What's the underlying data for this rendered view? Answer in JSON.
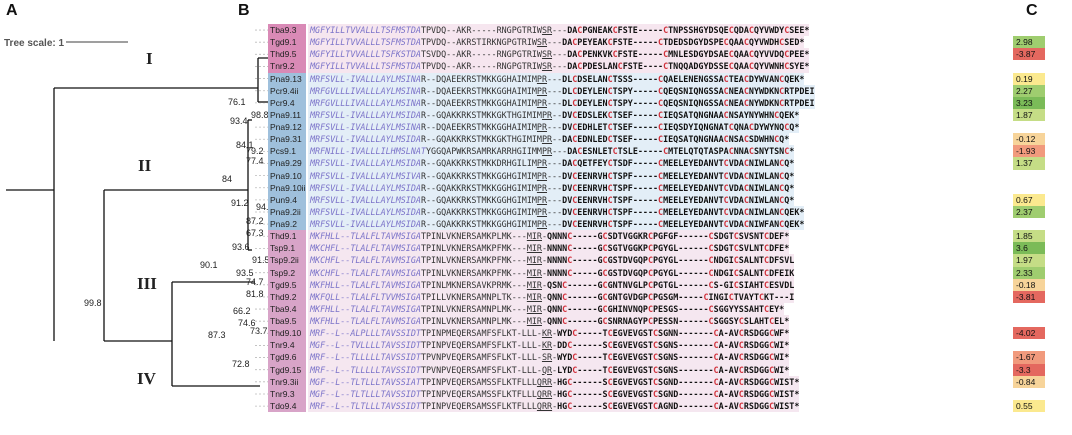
{
  "panels": {
    "a": "A",
    "b": "B",
    "c": "C"
  },
  "tree_scale_label": "Tree scale: 1",
  "clades": [
    "I",
    "II",
    "III",
    "IV"
  ],
  "bootstrap": [
    {
      "id": "b1",
      "v": "93.4"
    },
    {
      "id": "b2",
      "v": "76.1"
    },
    {
      "id": "b3",
      "v": "98.8"
    },
    {
      "id": "b4",
      "v": "84.1"
    },
    {
      "id": "b5",
      "v": "79.2"
    },
    {
      "id": "b6",
      "v": "77.4"
    },
    {
      "id": "b7",
      "v": "84"
    },
    {
      "id": "b8",
      "v": "91.2"
    },
    {
      "id": "b9",
      "v": "94.4"
    },
    {
      "id": "b10",
      "v": "87.2"
    },
    {
      "id": "b11",
      "v": "67.3"
    },
    {
      "id": "b12",
      "v": "93.6"
    },
    {
      "id": "b13",
      "v": "91.5"
    },
    {
      "id": "b14",
      "v": "90.1"
    },
    {
      "id": "b15",
      "v": "93.5"
    },
    {
      "id": "b16",
      "v": "74.7"
    },
    {
      "id": "b17",
      "v": "81.8"
    },
    {
      "id": "b18",
      "v": "99.8"
    },
    {
      "id": "b19",
      "v": "66.2"
    },
    {
      "id": "b20",
      "v": "74.6"
    },
    {
      "id": "b21",
      "v": "73.7"
    },
    {
      "id": "b22",
      "v": "87.3"
    },
    {
      "id": "b23",
      "v": "72.8"
    }
  ],
  "rows": [
    {
      "sp": "Tba9.3",
      "g": 1,
      "sig": "MGFYILLTVVALLLTSFMSTDA",
      "mid": "TPVDQ--AKR-----RNGPGTRIW",
      "u": "SR",
      "m": "---",
      "mat": "DACPGNEAKCFSTE-----CTNPSSHGYDSQECQDACQYVWDYCSEE*",
      "sc": ""
    },
    {
      "sp": "Tgd9.1",
      "g": 1,
      "sig": "MGFYILLTVVALLLTSFMSTDA",
      "mid": "TPVDQ--AKRSTIRKNGPGTRIW",
      "u": "SR",
      "m": "---",
      "mat": "DACPEYEAKCFSTE-----CTDEDSDGYDSPECQAACQYVWDHCSED*",
      "sc": "2.98"
    },
    {
      "sp": "Thd9.5",
      "g": 1,
      "sig": "MGFYILLTVVALLLTSFKSTDA",
      "mid": "TSVDQ--AKR-----RNGPGTRIW",
      "u": "SR",
      "m": "---",
      "mat": "DACPENKVKCFSTE-----CMNLESDGYDSAECQAACQYVVDQCPEE*",
      "sc": "-3.87"
    },
    {
      "sp": "Tnr9.2",
      "g": 1,
      "sig": "MGFYILLTVVALLLTSFMSTDA",
      "mid": "TPVDQ--AKR-----RNGPGTRIW",
      "u": "SR",
      "m": "---",
      "mat": "DACPDESLANCFSTE----CTNQQADGYDSSECQAACQYVWNHCSYE*",
      "sc": ""
    },
    {
      "sp": "Pna9.13",
      "g": 2,
      "sig": "MRFSVLL-IVALLLAYLMSINA",
      "mid": "R--DQAEEKRSTMKKGGHAIMIM",
      "u": "PR",
      "m": "---",
      "mat": "DLCDSELANCTSSS-----CQAELENENGSSACTEACDYWVANCQEK*",
      "sc": "0.19"
    },
    {
      "sp": "Pcr9.4ii",
      "g": 2,
      "sig": "MRFGVLLLIVALLLAYLMSINA",
      "mid": "R--DQAEEKRSTMKKGGHAIMIM",
      "u": "PR",
      "m": "---",
      "mat": "DLCDEYLENCTSPY-----CQEQSNIQNGSSACNEACNYWDKNCRTPDEI",
      "sc": "2.27"
    },
    {
      "sp": "Pcr9.4",
      "g": 2,
      "sig": "MRFGVLLLIVALLLAYLMSINA",
      "mid": "R--DQAEEKRSTMKKGGHAIMIM",
      "u": "PR",
      "m": "---",
      "mat": "DLCDEYLENCTSPY-----CQEQSNIQNGSSACNEACNYWDKNCRTPDEI",
      "sc": "3.23"
    },
    {
      "sp": "Pna9.11",
      "g": 2,
      "sig": "MRFSVLL-IVALLLAYLMSIDA",
      "mid": "R--GQAKKRKSTMKKGKTHGIMIM",
      "u": "PR",
      "m": "--",
      "mat": "DVCEDSLEKCTSEF-----CIEQSATQNGNAACNSAYNYWHNCQEK*",
      "sc": "1.87"
    },
    {
      "sp": "Pna9.12",
      "g": 2,
      "sig": "MRFSVLL-IVALLLAYLMSINA",
      "mid": "R--DQAEEKRSTMKKGGHAIMIM",
      "u": "PR",
      "m": "---",
      "mat": "DVCEDHLETCTSEF-----CIEQSDYIQNGNATCQNACDYWYNQCQ*",
      "sc": ""
    },
    {
      "sp": "Pna9.31",
      "g": 2,
      "sig": "MRFSVLL-IVALLLAYLMSIDA",
      "mid": "R--GQAKKRKSTMKKGKTHGIMIM",
      "u": "PR",
      "m": "--",
      "mat": "DACEDNLEDCTSEF-----CIEQSATQNGNAACNSACSDWHNCQ*",
      "sc": "-0.12"
    },
    {
      "sp": "Pcs9.1",
      "g": 2,
      "sig": "MRFNILL-IVALLLILHMSLNAT",
      "mid": "YGGQAPWKRSAMRKARRHGIIMM",
      "u": "PR",
      "m": "---",
      "mat": "DACESNLETCTSLE-----CMTELQTQTASPACNNACSNYTSNC*",
      "sc": "-1.93"
    },
    {
      "sp": "Pna9.29",
      "g": 2,
      "sig": "MRFSVLL-IVALLLAYLMSIDA",
      "mid": "R--GQAKKRKSTMKKDRHGILIM",
      "u": "PR",
      "m": "---",
      "mat": "DACQETFEYCTSDF-----CMEELEYEDANVTCVDACNIWLANCQ*",
      "sc": "1.37"
    },
    {
      "sp": "Pna9.10",
      "g": 2,
      "sig": "MRFSVLL-IVALLLAYLMSIVA",
      "mid": "R--GQAKKRKSTMKKGGHGIMIM",
      "u": "PR",
      "m": "---",
      "mat": "DVCEENRVHCTSPF-----CMEELEYEDANVTCVDACNIWLANCQ*",
      "sc": ""
    },
    {
      "sp": "Pna9.10ii",
      "g": 2,
      "sig": "MRFSVLL-IVALLLAYLMSIDA",
      "mid": "R--GQAKKRKSTMKKGGHGIMIM",
      "u": "PR",
      "m": "---",
      "mat": "DVCEENRVHCTSPF-----CMEELEYEDANVTCVDACNIWLANCQ*",
      "sc": ""
    },
    {
      "sp": "Pun9.4",
      "g": 2,
      "sig": "MRFSVLL-IVALLLAYLMSIDA",
      "mid": "R--GQAKKRKSTMKKGGHGIMIM",
      "u": "PR",
      "m": "---",
      "mat": "DVCEENRVHCTSPF-----CMEELEYEDANVTCVDACNIWLANCQ*",
      "sc": "0.67"
    },
    {
      "sp": "Pna9.2ii",
      "g": 2,
      "sig": "MRFSVLL-IVALLLAYLMSIDA",
      "mid": "R--GQAKKRKSTMKKGGHGIMIM",
      "u": "PR",
      "m": "---",
      "mat": "DVCEENRVHCTSPF-----CMEELEYEDANVTCVDACNIWLANCQEK*",
      "sc": "2.37"
    },
    {
      "sp": "Pna9.2",
      "g": 2,
      "sig": "MRFSVLL-IVALLLAYLMSIDA",
      "mid": "R--GQAKKRKSTMKKGGHGIMIM",
      "u": "PR",
      "m": "---",
      "mat": "DVCEENRVHCTSPF-----CMEELEYEDANVTCVDACNIWFANCQEK*",
      "sc": ""
    },
    {
      "sp": "Thd9.1",
      "g": 3,
      "sig": "MKFHLL--TLALFLTAVMSIGA",
      "mid": "TPINLVKNERSAMKPLMK---",
      "u": "MIR",
      "m": "-",
      "mat": "QNNNC-----GCSDTVGGKRCPGFGF------CSDGTCSVSNTCDEF*",
      "sc": "1.85"
    },
    {
      "sp": "Tsp9.1",
      "g": 3,
      "sig": "MKCHFL--TLALFLTAVMSIGA",
      "mid": "TPINLVKNERSAMKPFMK---",
      "u": "MIR",
      "m": "-",
      "mat": "NNNNC-----GCSGTVGGKPCPGYGL------CSDGTCSVLNTCDFE*",
      "sc": "3.6"
    },
    {
      "sp": "Tsp9.2ii",
      "g": 3,
      "sig": "MKCHFL--TLALFLTAVMSIGA",
      "mid": "TPINLVKNERSAMKPFMK---",
      "u": "MIR",
      "m": "-",
      "mat": "NNNNC-----GCGSTDVGQPCPGYGL------CNDGICSALNTCDFSVL",
      "sc": "1.97"
    },
    {
      "sp": "Tsp9.2",
      "g": 3,
      "sig": "MKCHFL--TLALFLTAVMSIGA",
      "mid": "TPINLVKNERSAMKPFMK---",
      "u": "MIR",
      "m": "-",
      "mat": "NNNNC-----GCGSTDVGQPCPGYGL------CNDGICSALNTCDFEIK",
      "sc": "2.33"
    },
    {
      "sp": "Tgd9.5",
      "g": 3,
      "sig": "MKFHLL--TLALFLTAVMSIGA",
      "mid": "TPINLMKNERSAVKPRMK---",
      "u": "MIR",
      "m": "-",
      "mat": "QSNC------GCGNTNVGLPCPGTGL------CS-GICSIAHTCESVDL",
      "sc": "-0.18"
    },
    {
      "sp": "Thd9.2",
      "g": 3,
      "sig": "MKFQLL--TLALFLTVVMSIGA",
      "mid": "TPILLVKNERSAMNPLTK---",
      "u": "MIR",
      "m": "-",
      "mat": "QNNC------GCGNTGVDGPCPGSGM-----CINGICTVAYTCKT---I",
      "sc": "-3.81"
    },
    {
      "sp": "Tba9.4",
      "g": 3,
      "sig": "MKFHLL--TLALFLTAVMSIGA",
      "mid": "TPINLVKNERSAMNPLMK---",
      "u": "MIR",
      "m": "-",
      "mat": "QNNC------GCGHINVNQPCPESGS------CSGGYYSSAHTCEY*",
      "sc": ""
    },
    {
      "sp": "Tba9.5",
      "g": 3,
      "sig": "MKFHLL--TLALFLTAVMSIGA",
      "mid": "TPINLVKNERSAMNPLMK---",
      "u": "MIR",
      "m": "-",
      "mat": "QNNC------GCSNRNAGYPCPESSN------CSGGSYCSLAHTCEL*",
      "sc": ""
    },
    {
      "sp": "Thd9.10",
      "g": 4,
      "sig": "MRF--L--ALPLLLTAVSSIDT",
      "mid": "TPINPMEQERSAMFSFLKT-LLL-",
      "u": "KR",
      "m": "-",
      "mat": "WYDC-----TCEGVEVGSTCSGNN-------CA-AVCRSDGGCWF*",
      "sc": "-4.02"
    },
    {
      "sp": "Tnr9.4",
      "g": 4,
      "sig": "MGF--L--TVLLLLTAVSSIDT",
      "mid": "TPINPVEQERSAMFSFLKT-LLL-",
      "u": "KR",
      "m": "-",
      "mat": "DDC------SCEGVEVGSTCSGNS-------CA-AVCRSDGGCWI*",
      "sc": ""
    },
    {
      "sp": "Tgd9.6",
      "g": 4,
      "sig": "MRF--L--TLLLLLTAVSSIDT",
      "mid": "TPVNPVEQERSAMFSFLKT-LLL-",
      "u": "SR",
      "m": "-",
      "mat": "WYDC-----TCEGVEVGSTCSGNS-------CA-AVCRSDGGCWI*",
      "sc": "-1.67"
    },
    {
      "sp": "Tgd9.15",
      "g": 4,
      "sig": "MRF--L--TLLLLLTAVSSIDT",
      "mid": "TPVNPVEQERSAMFSFLKT-LLL-",
      "u": "QR",
      "m": "-",
      "mat": "LYDC-----TCEGVEVGSTCSGNS-------CA-AVCRSDGGCWI*",
      "sc": "-3.3"
    },
    {
      "sp": "Tnr9.3ii",
      "g": 4,
      "sig": "MGF--L--TLTLLLTAVSSIAT",
      "mid": "TPINPVEQERSAMSSFLKTFLLL",
      "u": "QRR",
      "m": "-",
      "mat": "HGC------SCEGVEVGSTCSGND-------CA-AVCRSDGGCWIST*",
      "sc": "-0.84"
    },
    {
      "sp": "Tnr9.3",
      "g": 4,
      "sig": "MGF--L--TLTLLLTAVSSIDT",
      "mid": "TPINPVEQERSAMSSFLKTFLLL",
      "u": "QRR",
      "m": "-",
      "mat": "HGC------SCEGVEVGSTCSGND-------CA-AVCRSDGGCWIST*",
      "sc": ""
    },
    {
      "sp": "Tdo9.4",
      "g": 4,
      "sig": "MRF--L--TLTLLLTAVSSIDT",
      "mid": "TPINPVEQERSAMSSFLKTFLLL",
      "u": "QRR",
      "m": "-",
      "mat": "HGC------SCEGVEVGSTCAGND-------CA-AVCRSDGGCWIST*",
      "sc": "0.55"
    }
  ]
}
